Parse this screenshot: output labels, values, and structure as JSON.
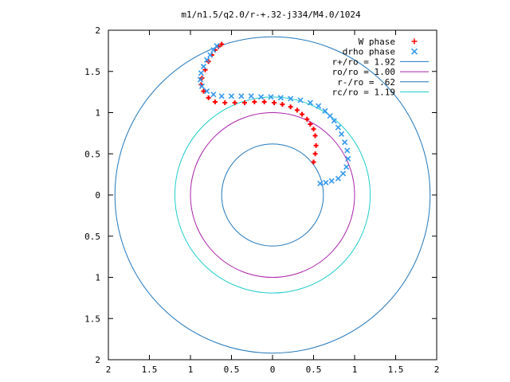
{
  "chart_data": {
    "type": "scatter",
    "title": "m1/n1.5/q2.0/r-+.32-j334/M4.0/1024",
    "xlabel": "",
    "ylabel": "",
    "xlim": [
      -2,
      2
    ],
    "ylim": [
      -2,
      2
    ],
    "x_ticks": [
      {
        "value": -2,
        "label": "2"
      },
      {
        "value": -1.5,
        "label": "1.5"
      },
      {
        "value": -1,
        "label": "1"
      },
      {
        "value": -0.5,
        "label": "0.5"
      },
      {
        "value": 0,
        "label": "0"
      },
      {
        "value": 0.5,
        "label": "0.5"
      },
      {
        "value": 1,
        "label": "1"
      },
      {
        "value": 1.5,
        "label": "1.5"
      },
      {
        "value": 2,
        "label": "2"
      }
    ],
    "y_ticks": [
      {
        "value": 2,
        "label": "2"
      },
      {
        "value": 1.5,
        "label": "1.5"
      },
      {
        "value": 1,
        "label": "1"
      },
      {
        "value": 0.5,
        "label": "0.5"
      },
      {
        "value": 0,
        "label": "0"
      },
      {
        "value": -0.5,
        "label": "0.5"
      },
      {
        "value": -1,
        "label": "1"
      },
      {
        "value": -1.5,
        "label": "1.5"
      },
      {
        "value": -2,
        "label": "2"
      }
    ],
    "grid": false,
    "legend_position": "top-right",
    "series": [
      {
        "name": "W phase",
        "kind": "points",
        "marker": "+",
        "color": "#ff0000",
        "x": [
          0.5,
          0.52,
          0.53,
          0.52,
          0.5,
          0.46,
          0.42,
          0.36,
          0.3,
          0.22,
          0.12,
          0.02,
          -0.1,
          -0.22,
          -0.34,
          -0.46,
          -0.58,
          -0.7,
          -0.78,
          -0.84,
          -0.87,
          -0.86,
          -0.82,
          -0.78,
          -0.74,
          -0.7,
          -0.66,
          -0.62
        ],
        "y": [
          0.4,
          0.5,
          0.6,
          0.72,
          0.8,
          0.86,
          0.92,
          0.98,
          1.03,
          1.07,
          1.1,
          1.12,
          1.13,
          1.13,
          1.12,
          1.12,
          1.12,
          1.13,
          1.18,
          1.26,
          1.34,
          1.42,
          1.52,
          1.62,
          1.7,
          1.76,
          1.8,
          1.83
        ]
      },
      {
        "name": "drho phase",
        "kind": "points",
        "marker": "x",
        "color": "#3399ee",
        "x": [
          0.58,
          0.65,
          0.72,
          0.8,
          0.86,
          0.9,
          0.92,
          0.91,
          0.88,
          0.84,
          0.8,
          0.75,
          0.7,
          0.64,
          0.56,
          0.46,
          0.34,
          0.22,
          0.1,
          -0.02,
          -0.14,
          -0.26,
          -0.38,
          -0.5,
          -0.62,
          -0.72,
          -0.8,
          -0.86,
          -0.88,
          -0.87,
          -0.84,
          -0.8,
          -0.76,
          -0.72,
          -0.68
        ],
        "y": [
          0.14,
          0.15,
          0.17,
          0.2,
          0.26,
          0.34,
          0.44,
          0.54,
          0.64,
          0.74,
          0.82,
          0.9,
          0.96,
          1.02,
          1.08,
          1.12,
          1.15,
          1.17,
          1.18,
          1.19,
          1.19,
          1.2,
          1.2,
          1.2,
          1.2,
          1.22,
          1.26,
          1.32,
          1.4,
          1.48,
          1.56,
          1.64,
          1.7,
          1.76,
          1.81
        ]
      },
      {
        "name": "r+/ro = 1.92",
        "kind": "circle",
        "radius": 1.92,
        "color": "#2277bb"
      },
      {
        "name": "ro/ro = 1.00",
        "kind": "circle",
        "radius": 1.0,
        "color": "#aa22aa"
      },
      {
        "name": "r-/ro = .62",
        "kind": "circle",
        "radius": 0.62,
        "color": "#2277bb"
      },
      {
        "name": "rc/ro = 1.19",
        "kind": "circle",
        "radius": 1.19,
        "color": "#22cccc"
      }
    ]
  }
}
